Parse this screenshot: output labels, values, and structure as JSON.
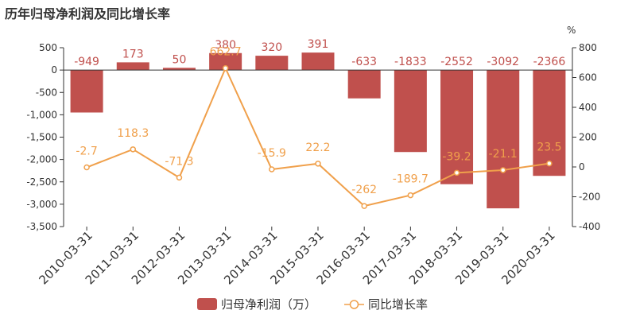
{
  "title": "历年归母净利润及同比增长率",
  "chart_data": {
    "type": "bar",
    "categories": [
      "2010-03-31",
      "2011-03-31",
      "2012-03-31",
      "2013-03-31",
      "2014-03-31",
      "2015-03-31",
      "2016-03-31",
      "2017-03-31",
      "2018-03-31",
      "2019-03-31",
      "2020-03-31"
    ],
    "series": [
      {
        "name": "归母净利润（万）",
        "type": "bar",
        "values": [
          -949,
          173,
          50,
          380,
          320,
          391,
          -633,
          -1833,
          -2552,
          -3092,
          -2366
        ],
        "labels": [
          "-949",
          "173",
          "50",
          "380",
          "320",
          "391",
          "-633",
          "-1833",
          "-2552",
          "-3092",
          "-2366"
        ]
      },
      {
        "name": "同比增长率",
        "type": "line",
        "axis": "right",
        "values": [
          -2.7,
          118.3,
          -71.3,
          662.7,
          -15.9,
          22.2,
          -262,
          -189.7,
          -39.2,
          -21.1,
          23.5
        ],
        "labels": [
          "-2.7",
          "118.3",
          "-71.3",
          "662.7",
          "-15.9",
          "22.2",
          "-262",
          "-189.7",
          "-39.2",
          "-21.1",
          "23.5"
        ]
      }
    ],
    "y_left": {
      "min": -3500,
      "max": 500,
      "ticks": [
        500,
        0,
        -500,
        -1000,
        -1500,
        -2000,
        -2500,
        -3000,
        -3500
      ],
      "tick_labels": [
        "500",
        "0",
        "-500",
        "-1,000",
        "-1,500",
        "-2,000",
        "-2,500",
        "-3,000",
        "-3,500"
      ]
    },
    "y_right": {
      "min": -400,
      "max": 800,
      "ticks": [
        800,
        600,
        400,
        200,
        0,
        -200,
        -400
      ],
      "tick_labels": [
        "800",
        "600",
        "400",
        "200",
        "0",
        "-200",
        "-400"
      ],
      "unit": "%"
    },
    "grid": false,
    "legend_position": "bottom",
    "colors": {
      "bar": "#C0504D",
      "line": "#F0A04B",
      "axis": "#333333"
    }
  }
}
